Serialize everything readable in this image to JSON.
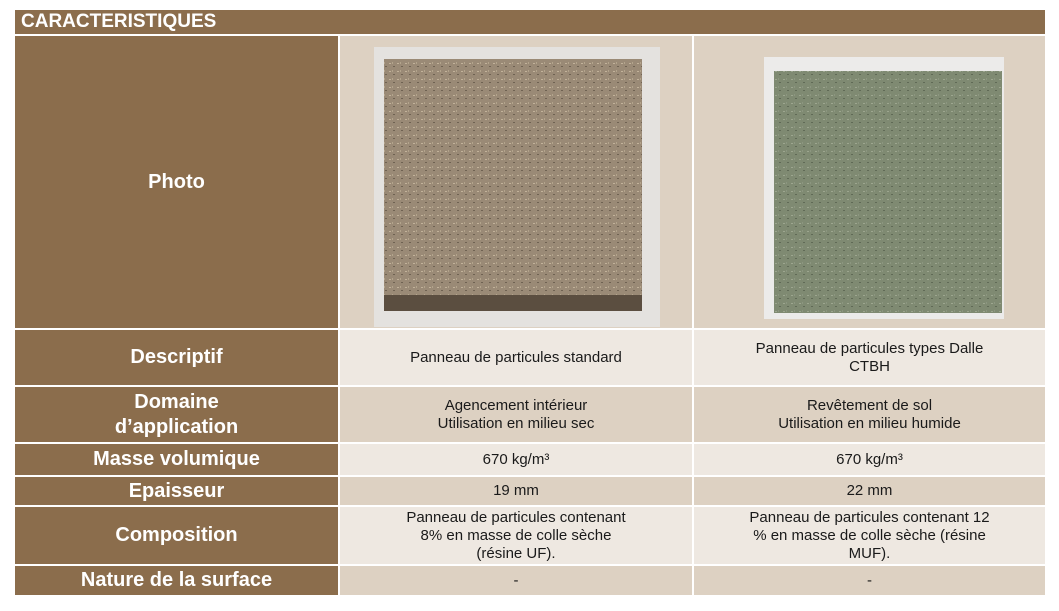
{
  "header": {
    "title": "CARACTERISTIQUES"
  },
  "table": {
    "rows": [
      {
        "label": "Photo"
      },
      {
        "label": "Descriptif",
        "cells": [
          "Panneau de particules standard",
          "Panneau de particules types Dalle\nCTBH"
        ]
      },
      {
        "label": "Domaine\nd’application",
        "cells": [
          "Agencement intérieur\nUtilisation en milieu sec",
          "Revêtement de sol\nUtilisation en milieu humide"
        ]
      },
      {
        "label": "Masse volumique",
        "cells": [
          "670 kg/m³",
          "670 kg/m³"
        ]
      },
      {
        "label": "Epaisseur",
        "cells": [
          "19 mm",
          "22 mm"
        ]
      },
      {
        "label": "Composition",
        "cells": [
          "Panneau de particules contenant\n8% en masse de colle sèche\n(résine UF).",
          "Panneau de particules contenant 12\n% en masse de colle sèche (résine\nMUF)."
        ]
      },
      {
        "label": "Nature de la surface",
        "cells": [
          "-",
          "-"
        ]
      }
    ]
  }
}
